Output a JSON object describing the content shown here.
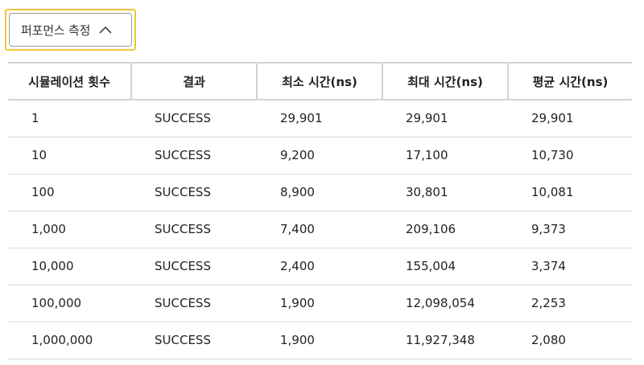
{
  "perf_toggle": {
    "label": "퍼포먼스 측정",
    "icon": "chevron-up-icon",
    "accent_color": "#f2c532"
  },
  "table": {
    "headers": [
      "시뮬레이션 횟수",
      "결과",
      "최소 시간(ns)",
      "최대 시간(ns)",
      "평균 시간(ns)"
    ],
    "rows": [
      [
        "1",
        "SUCCESS",
        "29,901",
        "29,901",
        "29,901"
      ],
      [
        "10",
        "SUCCESS",
        "9,200",
        "17,100",
        "10,730"
      ],
      [
        "100",
        "SUCCESS",
        "8,900",
        "30,801",
        "10,081"
      ],
      [
        "1,000",
        "SUCCESS",
        "7,400",
        "209,106",
        "9,373"
      ],
      [
        "10,000",
        "SUCCESS",
        "2,400",
        "155,004",
        "3,374"
      ],
      [
        "100,000",
        "SUCCESS",
        "1,900",
        "12,098,054",
        "2,253"
      ],
      [
        "1,000,000",
        "SUCCESS",
        "1,900",
        "11,927,348",
        "2,080"
      ]
    ]
  }
}
